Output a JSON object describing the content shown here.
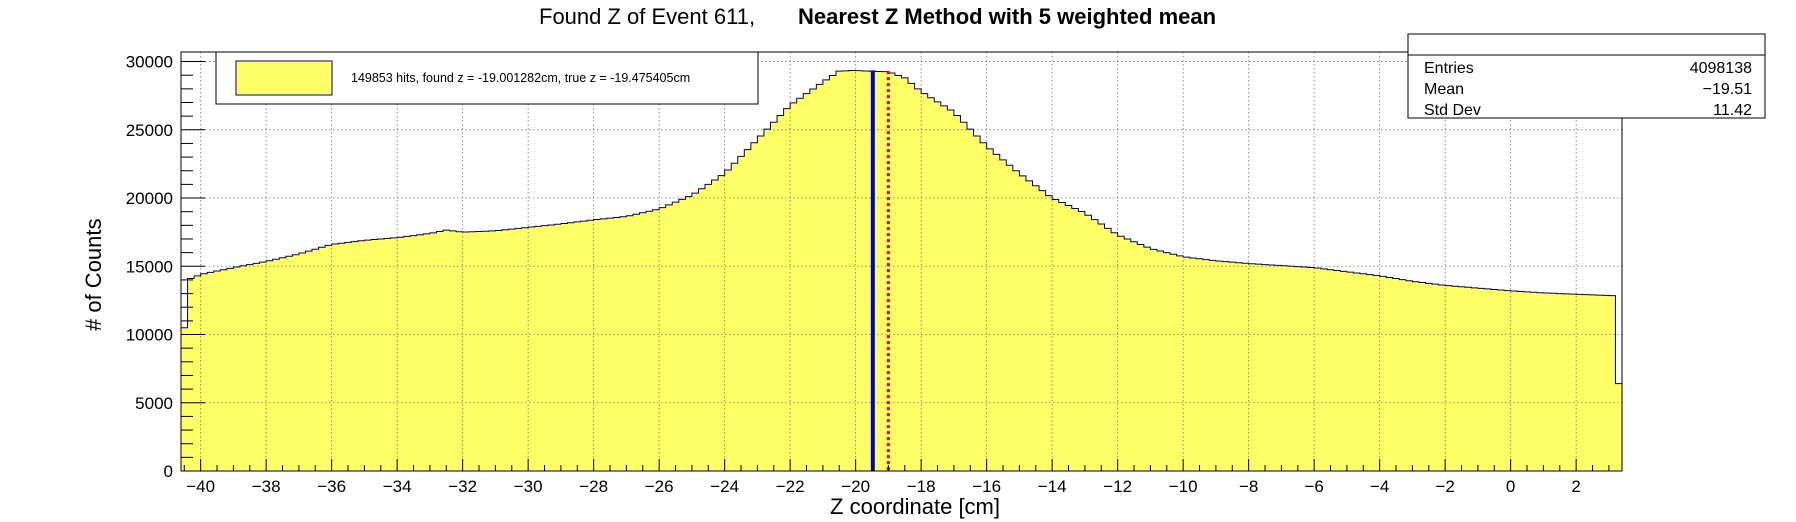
{
  "chart_data": {
    "type": "bar",
    "title_part1": "Found Z of Event 611,",
    "title_part2": "Nearest Z Method with 5 weighted mean",
    "xlabel": "Z coordinate [cm]",
    "ylabel": "# of Counts",
    "xlim": [
      -40.6,
      3.4
    ],
    "ylim": [
      0,
      30700
    ],
    "xticks": [
      "−40",
      "−38",
      "−36",
      "−34",
      "−32",
      "−30",
      "−28",
      "−26",
      "−24",
      "−22",
      "−20",
      "−18",
      "−16",
      "−14",
      "−12",
      "−10",
      "−8",
      "−6",
      "−4",
      "−2",
      "0",
      "2"
    ],
    "xtick_values": [
      -40,
      -38,
      -36,
      -34,
      -32,
      -30,
      -28,
      -26,
      -24,
      -22,
      -20,
      -18,
      -16,
      -14,
      -12,
      -10,
      -8,
      -6,
      -4,
      -2,
      0,
      2
    ],
    "yticks": [
      "0",
      "5000",
      "10000",
      "15000",
      "20000",
      "25000",
      "30000"
    ],
    "ytick_values": [
      0,
      5000,
      10000,
      15000,
      20000,
      25000,
      30000
    ],
    "grid": true,
    "fill_color": "#ffff66",
    "line_color": "#000080",
    "profile": [
      [
        -40.6,
        7000
      ],
      [
        -40.4,
        14000
      ],
      [
        -40.0,
        14400
      ],
      [
        -39.0,
        14900
      ],
      [
        -38.0,
        15350
      ],
      [
        -37.0,
        15900
      ],
      [
        -36.0,
        16600
      ],
      [
        -35.0,
        16900
      ],
      [
        -34.0,
        17100
      ],
      [
        -33.0,
        17400
      ],
      [
        -32.5,
        17650
      ],
      [
        -32.0,
        17500
      ],
      [
        -31.0,
        17600
      ],
      [
        -30.0,
        17850
      ],
      [
        -29.0,
        18100
      ],
      [
        -28.0,
        18400
      ],
      [
        -27.0,
        18650
      ],
      [
        -26.0,
        19200
      ],
      [
        -25.0,
        20200
      ],
      [
        -24.0,
        21800
      ],
      [
        -23.0,
        24300
      ],
      [
        -22.0,
        26800
      ],
      [
        -21.0,
        28500
      ],
      [
        -20.5,
        29300
      ],
      [
        -20.0,
        29350
      ],
      [
        -19.6,
        29300
      ],
      [
        -19.0,
        29250
      ],
      [
        -18.5,
        28800
      ],
      [
        -18.0,
        27800
      ],
      [
        -17.0,
        26300
      ],
      [
        -16.0,
        23800
      ],
      [
        -15.0,
        21800
      ],
      [
        -14.0,
        20000
      ],
      [
        -13.0,
        18900
      ],
      [
        -12.0,
        17300
      ],
      [
        -11.0,
        16300
      ],
      [
        -10.0,
        15700
      ],
      [
        -9.0,
        15400
      ],
      [
        -8.0,
        15200
      ],
      [
        -7.0,
        15050
      ],
      [
        -6.0,
        14900
      ],
      [
        -5.0,
        14600
      ],
      [
        -4.0,
        14300
      ],
      [
        -3.0,
        13900
      ],
      [
        -2.0,
        13600
      ],
      [
        -1.0,
        13400
      ],
      [
        0.0,
        13200
      ],
      [
        1.0,
        13050
      ],
      [
        2.0,
        12950
      ],
      [
        3.1,
        12850
      ],
      [
        3.2,
        6400
      ],
      [
        3.4,
        6400
      ]
    ],
    "bin_width": 0.2,
    "true_z": -19.475405,
    "found_z": -19.001282,
    "true_z_color": "#0000dd",
    "found_z_color": "#ee0000",
    "legend": {
      "text": "149853 hits, found z = -19.001282cm, true z = -19.475405cm",
      "swatch_color": "#ffff66"
    },
    "stats": {
      "rows": [
        {
          "label": "Entries",
          "value": "4098138"
        },
        {
          "label": "Mean",
          "value": "−19.51"
        },
        {
          "label": "Std Dev",
          "value": "11.42"
        }
      ]
    }
  }
}
